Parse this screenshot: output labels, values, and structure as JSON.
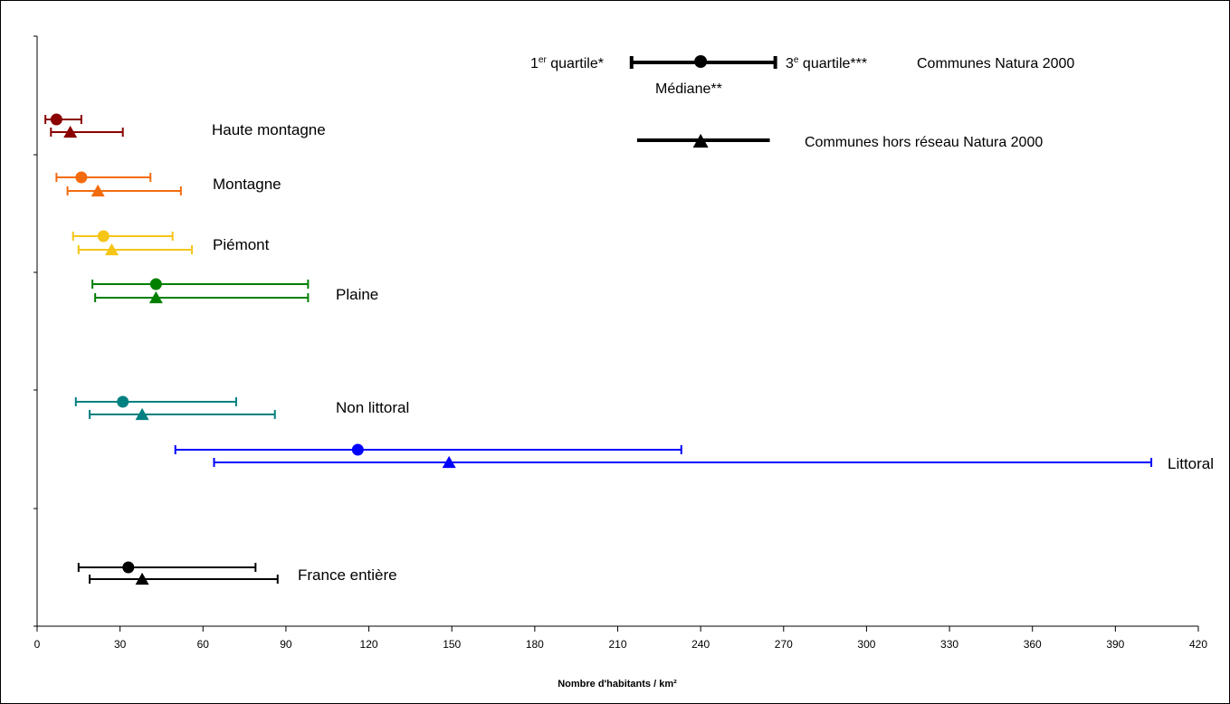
{
  "chart_data": {
    "type": "error-bar",
    "xlabel": "Nombre d'habitants / km²",
    "xlim": [
      0,
      420
    ],
    "xticks": [
      0,
      30,
      60,
      90,
      120,
      150,
      180,
      210,
      240,
      270,
      300,
      330,
      360,
      390,
      420
    ],
    "grid": false,
    "legend": {
      "placement": "top-right",
      "first_quartile": "1er quartile*",
      "first_quartile_base": "1",
      "first_quartile_sup": "er",
      "first_quartile_rest": " quartile*",
      "third_quartile": "3e quartile***",
      "third_quartile_base": "3",
      "third_quartile_sup": "e",
      "third_quartile_rest": " quartile***",
      "median": "Médiane**",
      "series_natura": "Communes Natura 2000",
      "series_hors": "Communes hors réseau Natura 2000",
      "natura_example": {
        "q1": 215,
        "median": 240,
        "q3": 267
      },
      "hors_example": {
        "q1": 217,
        "median": 240,
        "q3": 265
      }
    },
    "categories": [
      {
        "label": "Haute montagne",
        "color": "#8B0000",
        "natura": {
          "q1": 3,
          "median": 7,
          "q3": 16
        },
        "hors": {
          "q1": 5,
          "median": 12,
          "q3": 31
        }
      },
      {
        "label": "Montagne",
        "color": "#F26B0F",
        "natura": {
          "q1": 7,
          "median": 16,
          "q3": 41
        },
        "hors": {
          "q1": 11,
          "median": 22,
          "q3": 52
        }
      },
      {
        "label": "Piémont",
        "color": "#F5C518",
        "natura": {
          "q1": 13,
          "median": 24,
          "q3": 49
        },
        "hors": {
          "q1": 15,
          "median": 27,
          "q3": 56
        }
      },
      {
        "label": "Plaine",
        "color": "#008000",
        "natura": {
          "q1": 20,
          "median": 43,
          "q3": 98
        },
        "hors": {
          "q1": 21,
          "median": 43,
          "q3": 98
        }
      },
      {
        "label": "Non littoral",
        "color": "#008080",
        "natura": {
          "q1": 14,
          "median": 31,
          "q3": 72
        },
        "hors": {
          "q1": 19,
          "median": 38,
          "q3": 86
        }
      },
      {
        "label": "Littoral",
        "color": "#0000FF",
        "natura": {
          "q1": 50,
          "median": 116,
          "q3": 233
        },
        "hors": {
          "q1": 64,
          "median": 149,
          "q3": 403
        }
      },
      {
        "label": "France entière",
        "color": "#000000",
        "natura": {
          "q1": 15,
          "median": 33,
          "q3": 79
        },
        "hors": {
          "q1": 19,
          "median": 38,
          "q3": 87
        }
      }
    ]
  }
}
